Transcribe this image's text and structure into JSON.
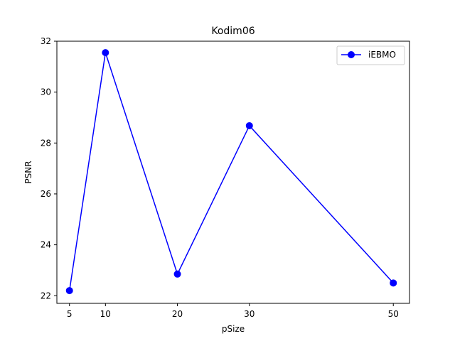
{
  "chart_data": {
    "type": "line",
    "title": "Kodim06",
    "xlabel": "pSize",
    "ylabel": "PSNR",
    "x": [
      5,
      10,
      20,
      30,
      50
    ],
    "xticks": [
      5,
      10,
      20,
      30,
      50
    ],
    "yticks": [
      22,
      24,
      26,
      28,
      30,
      32
    ],
    "xlim": [
      3.25,
      52.25
    ],
    "ylim": [
      21.7,
      32.0
    ],
    "grid": false,
    "legend_position": "top-right",
    "series": [
      {
        "name": "iEBMO",
        "color": "#0000ff",
        "marker": "circle",
        "values": [
          22.2,
          31.55,
          22.85,
          28.68,
          22.5
        ]
      }
    ]
  }
}
